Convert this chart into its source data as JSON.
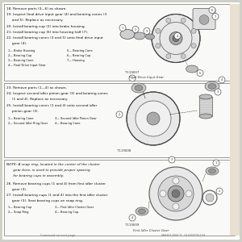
{
  "outer_bg": "#d0d0c8",
  "page_bg": "#ffffff",
  "section_bg": "#f8f8f6",
  "border_color": "#999999",
  "text_color": "#222222",
  "sections": [
    {
      "steps": [
        "18. Remove parts (3—6) as shown.",
        "19. Inspect final drive input gear (4) and bearing cones (3",
        "     and 5). Replace as necessary.",
        "20. Install bearing cup (2) into brake housing.",
        "21. Install bearing cup (6) into housing half (7).",
        "22. Install bearing cones (3 and 5) onto final drive input",
        "     gear (4)."
      ],
      "legend": [
        [
          "1— Brake Housing",
          "5— Bearing Cone"
        ],
        [
          "2— Bearing Cup",
          "6— Bearing Cup"
        ],
        [
          "3— Bearing Cone",
          "7— Housing"
        ],
        [
          "4— Final Drive Input Gear",
          ""
        ]
      ],
      "fig_label": "T119007",
      "fig_caption": "Final Drive Input Gear"
    },
    {
      "steps": [
        "23. Remove parts (1—4) as shown.",
        "24. Inspect second idler pinion gear (3) and bearing cones",
        "     (1 and 4). Replace as necessary.",
        "25. Install bearing cones (1 and 4) onto second idler",
        "     pinion gear (3)."
      ],
      "legend": [
        [
          "1— Bearing Cone",
          "3— Second Idler Pinion Gear"
        ],
        [
          "2— Second Idler Ring Gear",
          "4— Bearing Cone"
        ]
      ],
      "fig_label": "T119008",
      "fig_caption": ""
    },
    {
      "note": "NOTE: A snap ring, located in the center of the cluster",
      "note2": "      gear bore, is used to provide proper spacing",
      "note3": "      for bearing cups in assembly.",
      "steps": [
        "26. Remove bearing cups (1 and 4) from first idler cluster",
        "     gear (3).",
        "27. Install bearing cups (1 and 4) into the first idler cluster",
        "     gear (3). Seat bearing cups on snap ring."
      ],
      "legend": [
        [
          "1— Bearing Cup",
          "3— First Idler Cluster Gear"
        ],
        [
          "2— Snap Ring",
          "4— Bearing Cup"
        ]
      ],
      "fig_label": "T119009",
      "fig_caption": "First Idler Cluster Gear"
    }
  ],
  "footer_left": "Continued on next page",
  "footer_right": "SM2353,2000-71 -19-020CT09-1/26"
}
